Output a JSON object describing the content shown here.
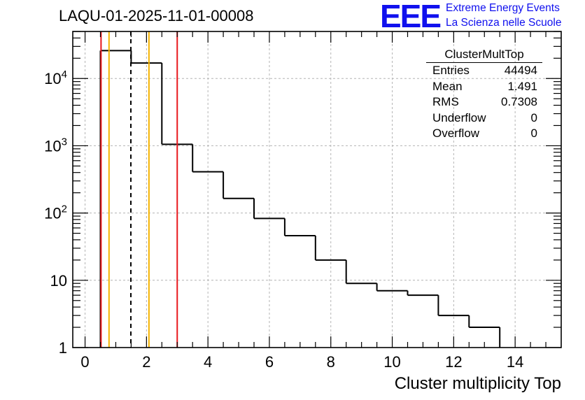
{
  "header": {
    "run_title": "LAQU-01-2025-11-01-00008",
    "logo_text": "EEE",
    "logo_line1": "Extreme Energy Events",
    "logo_line2": "La Scienza nelle Scuole"
  },
  "stats": {
    "name": "ClusterMultTop",
    "rows": [
      {
        "label": "Entries",
        "value": "44494"
      },
      {
        "label": "Mean",
        "value": "1.491"
      },
      {
        "label": "RMS",
        "value": "0.7308"
      },
      {
        "label": "Underflow",
        "value": "0"
      },
      {
        "label": "Overflow",
        "value": "0"
      }
    ]
  },
  "chart_data": {
    "type": "histogram",
    "title": "LAQU-01-2025-11-01-00008",
    "xlabel": "Cluster multiplicity Top",
    "ylabel": "",
    "xlim": [
      -0.4,
      15.5
    ],
    "ylim": [
      1,
      50000
    ],
    "yscale": "log",
    "grid": true,
    "x_ticks": [
      0,
      2,
      4,
      6,
      8,
      10,
      12,
      14
    ],
    "x_tick_labels": [
      "0",
      "2",
      "4",
      "6",
      "8",
      "10",
      "12",
      "14"
    ],
    "y_ticks": [
      1,
      10,
      100,
      1000,
      10000
    ],
    "y_tick_labels": [
      "1",
      "10",
      "10^2",
      "10^3",
      "10^4"
    ],
    "bins": [
      {
        "lo": 0.5,
        "hi": 1.5,
        "count": 26000
      },
      {
        "lo": 1.5,
        "hi": 2.5,
        "count": 17000
      },
      {
        "lo": 2.5,
        "hi": 3.5,
        "count": 1050
      },
      {
        "lo": 3.5,
        "hi": 4.5,
        "count": 410
      },
      {
        "lo": 4.5,
        "hi": 5.5,
        "count": 165
      },
      {
        "lo": 5.5,
        "hi": 6.5,
        "count": 83
      },
      {
        "lo": 6.5,
        "hi": 7.5,
        "count": 46
      },
      {
        "lo": 7.5,
        "hi": 8.5,
        "count": 20
      },
      {
        "lo": 8.5,
        "hi": 9.5,
        "count": 9
      },
      {
        "lo": 9.5,
        "hi": 10.5,
        "count": 7
      },
      {
        "lo": 10.5,
        "hi": 11.5,
        "count": 6
      },
      {
        "lo": 11.5,
        "hi": 12.5,
        "count": 3
      },
      {
        "lo": 12.5,
        "hi": 13.5,
        "count": 2
      }
    ],
    "vertical_lines": [
      {
        "x": 0.52,
        "color": "#e8161b",
        "style": "solid"
      },
      {
        "x": 0.78,
        "color": "#f5b300",
        "style": "solid"
      },
      {
        "x": 1.491,
        "color": "#000000",
        "style": "dashed"
      },
      {
        "x": 2.08,
        "color": "#f5b300",
        "style": "solid"
      },
      {
        "x": 3.0,
        "color": "#e8161b",
        "style": "solid"
      }
    ]
  }
}
